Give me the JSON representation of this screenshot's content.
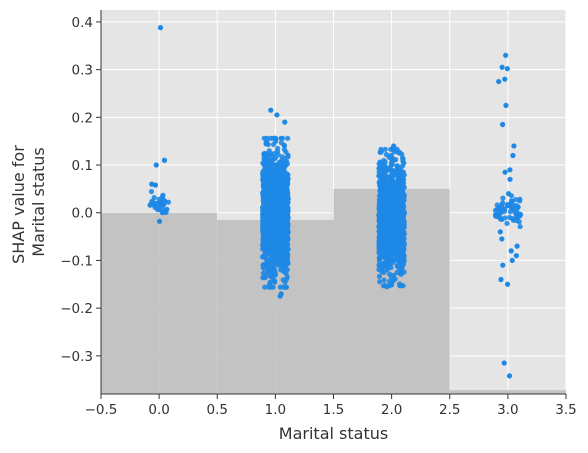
{
  "chart_data": {
    "type": "scatter",
    "xlabel": "Marital status",
    "ylabel_lines": [
      "SHAP value for",
      "Marital status"
    ],
    "xlim": [
      -0.5,
      3.5
    ],
    "ylim": [
      -0.38,
      0.425
    ],
    "xticks": [
      -0.5,
      0.0,
      0.5,
      1.0,
      1.5,
      2.0,
      2.5,
      3.0,
      3.5
    ],
    "xtick_labels": [
      "−0.5",
      "0.0",
      "0.5",
      "1.0",
      "1.5",
      "2.0",
      "2.5",
      "3.0",
      "3.5"
    ],
    "yticks": [
      -0.3,
      -0.2,
      -0.1,
      0.0,
      0.1,
      0.2,
      0.3,
      0.4
    ],
    "ytick_labels": [
      "−0.3",
      "−0.2",
      "−0.1",
      "0.0",
      "0.1",
      "0.2",
      "0.3",
      "0.4"
    ],
    "grid": true,
    "colors": {
      "background": "#e5e5e5",
      "grid": "#ffffff",
      "histogram": "#bdbdbd",
      "point": "#1e88e5"
    },
    "background_histogram": [
      {
        "x0": -0.5,
        "x1": 0.5,
        "height": 0.0
      },
      {
        "x0": 0.5,
        "x1": 1.5,
        "height": -0.015
      },
      {
        "x0": 1.5,
        "x1": 2.5,
        "height": 0.05
      },
      {
        "x0": 2.5,
        "x1": 3.5,
        "height": -0.372
      }
    ],
    "clusters": [
      {
        "x": 0,
        "n": 40,
        "center": 0.02,
        "spread": 0.012,
        "jitter": 0.08,
        "outliers": [
          0.388,
          0.11,
          0.1,
          0.06,
          0.058,
          -0.018
        ]
      },
      {
        "x": 1,
        "n": 1600,
        "center": 0.0,
        "spread": 0.06,
        "jitter": 0.11,
        "outliers": [
          0.215,
          0.205,
          0.19,
          -0.175,
          -0.17
        ]
      },
      {
        "x": 2,
        "n": 1300,
        "center": -0.01,
        "spread": 0.055,
        "jitter": 0.11,
        "outliers": [
          0.14,
          0.13,
          -0.155,
          -0.15
        ]
      },
      {
        "x": 3,
        "n": 60,
        "center": 0.005,
        "spread": 0.015,
        "jitter": 0.11,
        "outliers": [
          0.33,
          0.305,
          0.302,
          0.28,
          0.275,
          0.225,
          0.185,
          0.14,
          0.12,
          0.09,
          0.085,
          0.07,
          0.04,
          -0.04,
          -0.055,
          -0.07,
          -0.08,
          -0.09,
          -0.1,
          -0.11,
          -0.14,
          -0.15,
          -0.315,
          -0.342
        ]
      }
    ]
  }
}
